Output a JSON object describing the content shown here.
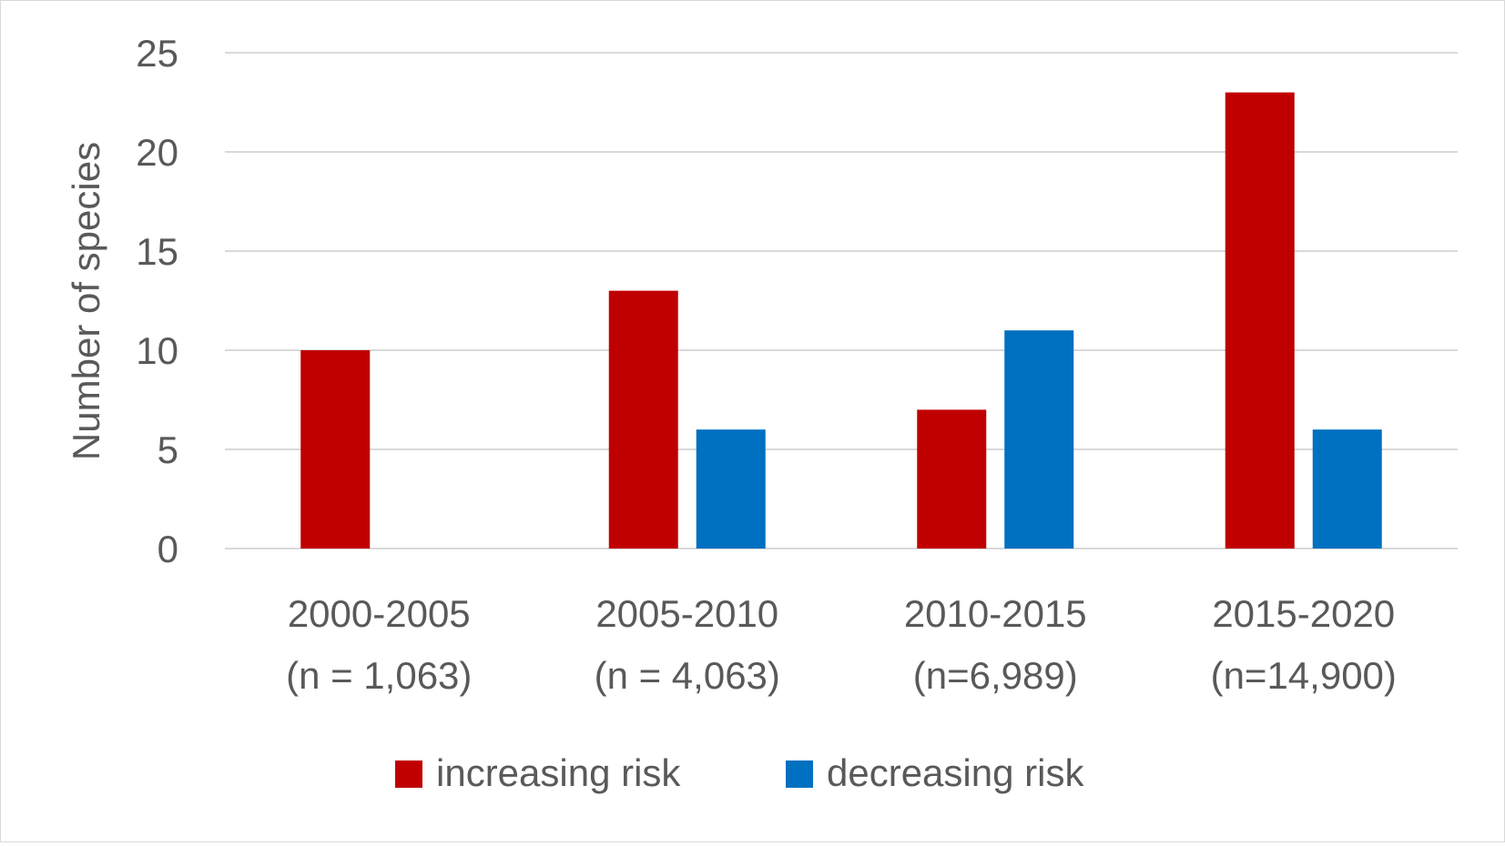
{
  "chart_data": {
    "type": "bar",
    "title": "",
    "xlabel": "",
    "ylabel": "Number of species",
    "ylim": [
      0,
      25
    ],
    "yticks": [
      0,
      5,
      10,
      15,
      20,
      25
    ],
    "grid": true,
    "legend_position": "bottom",
    "categories": [
      [
        "2000-2005",
        "(n = 1,063)"
      ],
      [
        "2005-2010",
        "(n = 4,063)"
      ],
      [
        "2010-2015",
        "(n=6,989)"
      ],
      [
        "2015-2020",
        "(n=14,900)"
      ]
    ],
    "series": [
      {
        "name": "increasing risk",
        "color": "#c00000",
        "values": [
          10,
          13,
          7,
          23
        ]
      },
      {
        "name": "decreasing risk",
        "color": "#0070c0",
        "values": [
          0,
          6,
          11,
          6
        ]
      }
    ]
  }
}
